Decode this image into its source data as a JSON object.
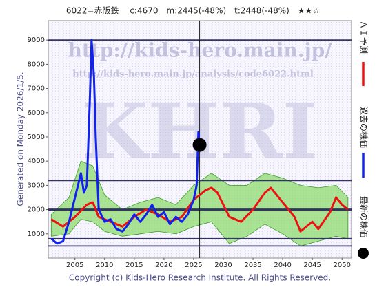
{
  "chart_data": {
    "type": "line",
    "title": "6022=赤阪鉄　 c:4670　m:2445(-48%)　t:2448(-48%)　★★☆",
    "watermarks": [
      "http://kids-hero.main.jp/",
      "http://kids-hero.main.jp/analysis/code6022.html",
      "KHRI"
    ],
    "side_text": "Generated on Monday 2026/1/5.",
    "footer": "Copyright (c) Kids-Hero Research Institute. All Rights Reserved.",
    "xlim": [
      2000.5,
      2051.6
    ],
    "ylim": [
      0,
      9800
    ],
    "xticks": [
      2005,
      2010,
      2015,
      2020,
      2025,
      2030,
      2035,
      2040,
      2045,
      2050
    ],
    "yticks": [
      1000,
      2000,
      3000,
      4000,
      5000,
      6000,
      7000,
      8000,
      9000
    ],
    "reference_lines": [
      9000,
      3200,
      2000,
      800,
      500
    ],
    "reference_x": 2026,
    "band": {
      "color": "#7fd85a",
      "x": [
        2001,
        2004,
        2006,
        2008,
        2010,
        2013,
        2016,
        2019,
        2022,
        2025,
        2028,
        2031,
        2034,
        2037,
        2040,
        2043,
        2046,
        2049,
        2051
      ],
      "upper": [
        1800,
        2500,
        4000,
        3800,
        2600,
        2000,
        2300,
        2500,
        2200,
        3000,
        3500,
        3000,
        3000,
        3500,
        3300,
        3000,
        2900,
        3000,
        2500
      ],
      "lower": [
        900,
        1000,
        1600,
        1500,
        1100,
        900,
        1000,
        1100,
        1000,
        1300,
        1500,
        600,
        900,
        1400,
        1000,
        500,
        700,
        900,
        800
      ]
    },
    "series": [
      {
        "name": "ＡＩ予測",
        "color": "#ee1111",
        "x": [
          2001,
          2003,
          2005,
          2007,
          2008,
          2009,
          2011,
          2013,
          2015,
          2017,
          2019,
          2021,
          2023,
          2025,
          2027,
          2028,
          2029,
          2031,
          2033,
          2035,
          2037,
          2038,
          2040,
          2042,
          2043,
          2045,
          2046,
          2048,
          2049,
          2050,
          2051
        ],
        "values": [
          1600,
          1300,
          1700,
          2200,
          2300,
          1700,
          1500,
          1300,
          1700,
          2000,
          1800,
          1500,
          1700,
          2400,
          2800,
          2900,
          2700,
          1700,
          1500,
          2000,
          2700,
          2900,
          2300,
          1700,
          1100,
          1500,
          1200,
          1900,
          2500,
          2200,
          2000
        ]
      },
      {
        "name": "過去の株価",
        "color": "#1122ee",
        "x": [
          2001,
          2002,
          2003,
          2004,
          2005,
          2006,
          2006.5,
          2007,
          2007.5,
          2007.8,
          2008.2,
          2008.5,
          2009,
          2010,
          2011,
          2012,
          2013,
          2014,
          2015,
          2016,
          2017,
          2018,
          2019,
          2020,
          2021,
          2022,
          2023,
          2024,
          2025,
          2025.5,
          2025.8,
          2026
        ],
        "values": [
          800,
          600,
          700,
          1500,
          2500,
          3500,
          2700,
          3000,
          6500,
          9000,
          7500,
          5000,
          2000,
          1500,
          1600,
          1200,
          1100,
          1400,
          1800,
          1500,
          1800,
          2200,
          1700,
          1900,
          1400,
          1700,
          1500,
          1800,
          2400,
          3000,
          5200,
          4670
        ]
      },
      {
        "name": "最新の株価",
        "color": "#000000",
        "x": [
          2026
        ],
        "values": [
          4670
        ]
      }
    ]
  }
}
